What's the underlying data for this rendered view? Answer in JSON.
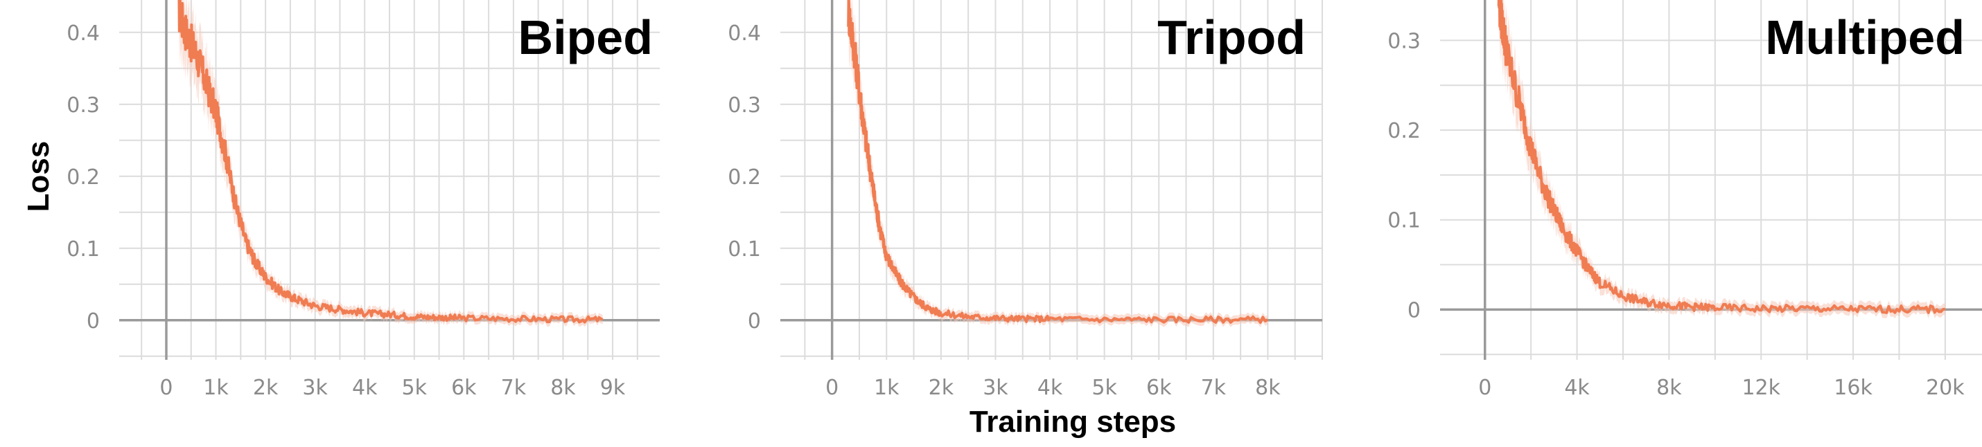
{
  "figure": {
    "ylabel": "Loss",
    "xlabel": "Training steps"
  },
  "colors": {
    "series": "#f07c52",
    "band": "#f6c7b7"
  },
  "chart_data": [
    {
      "type": "line",
      "title": "Biped",
      "xlim": [
        -950,
        9950
      ],
      "ylim": [
        -0.055,
        0.445
      ],
      "xticks": [
        0,
        1000,
        2000,
        3000,
        4000,
        5000,
        6000,
        7000,
        8000,
        9000
      ],
      "xtick_labels": [
        "0",
        "1k",
        "2k",
        "3k",
        "4k",
        "5k",
        "6k",
        "7k",
        "8k",
        "9k"
      ],
      "yticks": [
        0,
        0.1,
        0.2,
        0.3,
        0.4
      ],
      "ytick_labels": [
        "0",
        "0.1",
        "0.2",
        "0.3",
        "0.4"
      ],
      "series": [
        {
          "x": [
            250,
            400,
            600,
            800,
            1000,
            1200,
            1400,
            1600,
            1800,
            2000,
            2300,
            2600,
            3000,
            3500,
            4000,
            4500,
            5000,
            5500,
            6000,
            7000,
            8000,
            8800
          ],
          "y": [
            0.43,
            0.4,
            0.37,
            0.33,
            0.29,
            0.23,
            0.16,
            0.11,
            0.08,
            0.06,
            0.04,
            0.03,
            0.02,
            0.015,
            0.01,
            0.008,
            0.005,
            0.004,
            0.003,
            0.002,
            0.001,
            0.001
          ]
        }
      ]
    },
    {
      "type": "line",
      "title": "Tripod",
      "xlim": [
        -950,
        9000
      ],
      "ylim": [
        -0.055,
        0.445
      ],
      "xticks": [
        0,
        1000,
        2000,
        3000,
        4000,
        5000,
        6000,
        7000,
        8000
      ],
      "xtick_labels": [
        "0",
        "1k",
        "2k",
        "3k",
        "4k",
        "5k",
        "6k",
        "7k",
        "8k"
      ],
      "yticks": [
        0,
        0.1,
        0.2,
        0.3,
        0.4
      ],
      "ytick_labels": [
        "0",
        "0.1",
        "0.2",
        "0.3",
        "0.4"
      ],
      "series": [
        {
          "x": [
            300,
            400,
            500,
            600,
            700,
            800,
            900,
            1000,
            1200,
            1400,
            1600,
            1800,
            2000,
            2500,
            3000,
            3500,
            4000,
            5000,
            6000,
            7000,
            8000
          ],
          "y": [
            0.43,
            0.38,
            0.32,
            0.26,
            0.21,
            0.16,
            0.12,
            0.09,
            0.06,
            0.04,
            0.025,
            0.015,
            0.01,
            0.005,
            0.003,
            0.002,
            0.002,
            0.001,
            0.001,
            0.001,
            0.001
          ]
        }
      ]
    },
    {
      "type": "line",
      "title": "Multiped",
      "xlim": [
        -1950,
        21600
      ],
      "ylim": [
        -0.056,
        0.345
      ],
      "xticks": [
        0,
        4000,
        8000,
        12000,
        16000,
        20000
      ],
      "xtick_labels": [
        "0",
        "4k",
        "8k",
        "12k",
        "16k",
        "20k"
      ],
      "yticks": [
        0,
        0.1,
        0.2,
        0.3
      ],
      "ytick_labels": [
        "0",
        "0.1",
        "0.2",
        "0.3"
      ],
      "series": [
        {
          "x": [
            600,
            800,
            1000,
            1500,
            2000,
            2500,
            3000,
            3500,
            4000,
            4500,
            5000,
            6000,
            7000,
            8000,
            9000,
            10000,
            12000,
            14000,
            16000,
            18000,
            20000
          ],
          "y": [
            0.345,
            0.31,
            0.28,
            0.23,
            0.18,
            0.14,
            0.11,
            0.085,
            0.065,
            0.045,
            0.03,
            0.015,
            0.008,
            0.005,
            0.003,
            0.002,
            0.001,
            0.001,
            0.0005,
            0.0003,
            0.0002
          ]
        }
      ]
    }
  ]
}
